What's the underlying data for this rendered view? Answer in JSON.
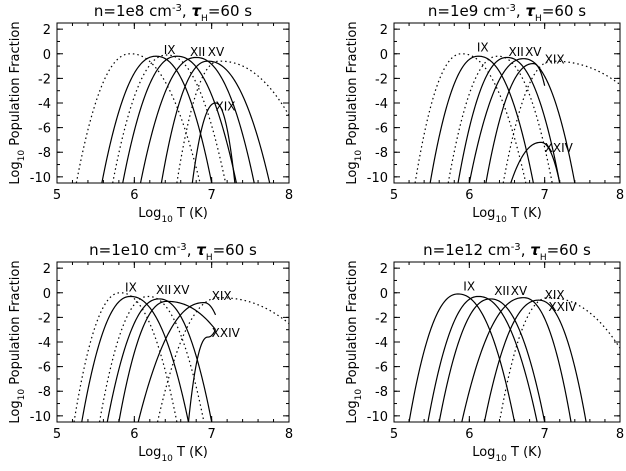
{
  "chart_data": [
    {
      "type": "line",
      "title": {
        "n": "n=1e8 cm",
        "exp": "-3",
        "sep": ", ",
        "tau": "τ",
        "tsub": "H",
        "rest": "=60 s"
      },
      "xlabel": {
        "pre": "Log",
        "sub": "10",
        "post": " T (K)"
      },
      "ylabel": {
        "pre": "Log",
        "sub": "10",
        "post": " Population Fraction"
      },
      "xlim": [
        5,
        8
      ],
      "ylim": [
        -10.5,
        2.5
      ],
      "xticks": [
        5,
        6,
        7,
        8
      ],
      "yticks": [
        -10,
        -8,
        -6,
        -4,
        -2,
        0,
        2
      ],
      "curves": [
        {
          "x": 5.25,
          "y": -10.5,
          "peak_x": 5.95,
          "peak_y": 0.0,
          "end_x": 6.85,
          "end_y": -10.5,
          "style": "dotted"
        },
        {
          "x": 5.58,
          "y": -10.5,
          "peak_x": 6.28,
          "peak_y": -0.2,
          "end_x": 7.0,
          "end_y": -10.5,
          "style": "solid"
        },
        {
          "x": 5.72,
          "y": -10.5,
          "peak_x": 6.42,
          "peak_y": -0.1,
          "end_x": 7.18,
          "end_y": -10.5,
          "style": "dotted"
        },
        {
          "x": 5.85,
          "y": -10.5,
          "peak_x": 6.55,
          "peak_y": -0.2,
          "end_x": 7.32,
          "end_y": -10.5,
          "style": "solid"
        },
        {
          "x": 6.08,
          "y": -10.5,
          "peak_x": 6.8,
          "peak_y": -0.3,
          "end_x": 7.55,
          "end_y": -10.5,
          "style": "solid"
        },
        {
          "x": 6.35,
          "y": -10.5,
          "peak_x": 6.95,
          "peak_y": -0.6,
          "end_x": 7.75,
          "end_y": -10.5,
          "style": "solid"
        },
        {
          "x": 6.55,
          "y": -10.5,
          "peak_x": 7.1,
          "peak_y": -0.6,
          "end_x": 8.0,
          "end_y": -5.0,
          "style": "dotted"
        },
        {
          "x": 6.75,
          "y": -10.5,
          "peak_x": 7.05,
          "peak_y": -4.0,
          "end_x": 7.3,
          "end_y": -10.5,
          "style": "solid"
        }
      ],
      "ion_labels": [
        {
          "text": "IX",
          "x": 6.38,
          "y": 0.0
        },
        {
          "text": "XII",
          "x": 6.72,
          "y": -0.2
        },
        {
          "text": "XV",
          "x": 6.95,
          "y": -0.2
        },
        {
          "text": "XIX",
          "x": 7.05,
          "y": -4.6
        }
      ]
    },
    {
      "type": "line",
      "title": {
        "n": "n=1e9 cm",
        "exp": "-3",
        "sep": ", ",
        "tau": "τ",
        "tsub": "H",
        "rest": "=60 s"
      },
      "xlabel": {
        "pre": "Log",
        "sub": "10",
        "post": " T (K)"
      },
      "ylabel": {
        "pre": "Log",
        "sub": "10",
        "post": " Population Fraction"
      },
      "xlim": [
        5,
        8
      ],
      "ylim": [
        -10.5,
        2.5
      ],
      "xticks": [
        5,
        6,
        7,
        8
      ],
      "yticks": [
        -10,
        -8,
        -6,
        -4,
        -2,
        0,
        2
      ],
      "curves": [
        {
          "x": 5.28,
          "y": -10.5,
          "peak_x": 5.9,
          "peak_y": 0.0,
          "end_x": 6.75,
          "end_y": -10.5,
          "style": "dotted"
        },
        {
          "x": 5.48,
          "y": -10.5,
          "peak_x": 6.12,
          "peak_y": -0.2,
          "end_x": 6.85,
          "end_y": -10.5,
          "style": "solid"
        },
        {
          "x": 5.72,
          "y": -10.5,
          "peak_x": 6.38,
          "peak_y": -0.2,
          "end_x": 7.1,
          "end_y": -10.5,
          "style": "dotted"
        },
        {
          "x": 5.85,
          "y": -10.5,
          "peak_x": 6.5,
          "peak_y": -0.3,
          "end_x": 7.2,
          "end_y": -10.5,
          "style": "solid"
        },
        {
          "x": 6.0,
          "y": -10.5,
          "peak_x": 6.72,
          "peak_y": -0.4,
          "end_x": 7.4,
          "end_y": -10.5,
          "style": "solid"
        },
        {
          "x": 6.22,
          "y": -10.5,
          "peak_x": 6.85,
          "peak_y": -0.8,
          "end_x": 7.0,
          "end_y": -2.6,
          "style": "solid"
        },
        {
          "x": 6.45,
          "y": -10.5,
          "peak_x": 7.1,
          "peak_y": -0.6,
          "end_x": 8.0,
          "end_y": -2.5,
          "style": "dotted"
        },
        {
          "x": 6.55,
          "y": -10.5,
          "peak_x": 6.95,
          "peak_y": -7.2,
          "end_x": 7.2,
          "end_y": -10.5,
          "style": "solid"
        }
      ],
      "ion_labels": [
        {
          "text": "IX",
          "x": 6.1,
          "y": 0.2
        },
        {
          "text": "XII",
          "x": 6.52,
          "y": -0.2
        },
        {
          "text": "XV",
          "x": 6.74,
          "y": -0.2
        },
        {
          "text": "XIX",
          "x": 7.0,
          "y": -0.8
        },
        {
          "text": "XXIV",
          "x": 7.0,
          "y": -8.0
        }
      ]
    },
    {
      "type": "line",
      "title": {
        "n": "n=1e10 cm",
        "exp": "-3",
        "sep": ", ",
        "tau": "τ",
        "tsub": "H",
        "rest": "=60 s"
      },
      "xlabel": {
        "pre": "Log",
        "sub": "10",
        "post": " T (K)"
      },
      "ylabel": {
        "pre": "Log",
        "sub": "10",
        "post": " Population Fraction"
      },
      "xlim": [
        5,
        8
      ],
      "ylim": [
        -10.5,
        2.5
      ],
      "xticks": [
        5,
        6,
        7,
        8
      ],
      "yticks": [
        -10,
        -8,
        -6,
        -4,
        -2,
        0,
        2
      ],
      "curves": [
        {
          "x": 5.22,
          "y": -10.5,
          "peak_x": 5.82,
          "peak_y": 0.0,
          "end_x": 6.55,
          "end_y": -10.5,
          "style": "dotted"
        },
        {
          "x": 5.32,
          "y": -10.5,
          "peak_x": 5.95,
          "peak_y": -0.3,
          "end_x": 6.7,
          "end_y": -10.5,
          "style": "solid"
        },
        {
          "x": 5.55,
          "y": -10.5,
          "peak_x": 6.18,
          "peak_y": -0.3,
          "end_x": 6.9,
          "end_y": -10.5,
          "style": "dotted"
        },
        {
          "x": 5.65,
          "y": -10.5,
          "peak_x": 6.32,
          "peak_y": -0.5,
          "end_x": 7.0,
          "end_y": -10.5,
          "style": "solid"
        },
        {
          "x": 5.8,
          "y": -10.5,
          "peak_x": 6.42,
          "peak_y": -0.7,
          "end_x": 7.05,
          "end_y": -3.0,
          "style": "solid"
        },
        {
          "x": 6.05,
          "y": -10.5,
          "peak_x": 6.9,
          "peak_y": -0.8,
          "end_x": 7.05,
          "end_y": -1.8,
          "style": "solid"
        },
        {
          "x": 6.3,
          "y": -10.5,
          "peak_x": 7.1,
          "peak_y": -0.4,
          "end_x": 8.0,
          "end_y": -2.5,
          "style": "dotted"
        },
        {
          "x": 6.7,
          "y": -10.5,
          "peak_x": 6.95,
          "peak_y": -3.6,
          "end_x": 7.05,
          "end_y": -3.0,
          "style": "solid"
        }
      ],
      "ion_labels": [
        {
          "text": "IX",
          "x": 5.88,
          "y": 0.1
        },
        {
          "text": "XII",
          "x": 6.28,
          "y": -0.1
        },
        {
          "text": "XV",
          "x": 6.5,
          "y": -0.1
        },
        {
          "text": "XIX",
          "x": 7.0,
          "y": -0.6
        },
        {
          "text": "XXIV",
          "x": 7.0,
          "y": -3.6
        }
      ]
    },
    {
      "type": "line",
      "title": {
        "n": "n=1e12 cm",
        "exp": "-3",
        "sep": ", ",
        "tau": "τ",
        "tsub": "H",
        "rest": "=60 s"
      },
      "xlabel": {
        "pre": "Log",
        "sub": "10",
        "post": " T (K)"
      },
      "ylabel": {
        "pre": "Log",
        "sub": "10",
        "post": " Population Fraction"
      },
      "xlim": [
        5,
        8
      ],
      "ylim": [
        -10.5,
        2.5
      ],
      "xticks": [
        5,
        6,
        7,
        8
      ],
      "yticks": [
        -10,
        -8,
        -6,
        -4,
        -2,
        0,
        2
      ],
      "curves": [
        {
          "x": 5.2,
          "y": -10.5,
          "peak_x": 5.85,
          "peak_y": -0.1,
          "end_x": 6.6,
          "end_y": -10.5,
          "style": "solid"
        },
        {
          "x": 5.45,
          "y": -10.5,
          "peak_x": 6.12,
          "peak_y": -0.3,
          "end_x": 6.9,
          "end_y": -10.5,
          "style": "solid"
        },
        {
          "x": 5.6,
          "y": -10.5,
          "peak_x": 6.28,
          "peak_y": -0.5,
          "end_x": 7.0,
          "end_y": -10.5,
          "style": "solid"
        },
        {
          "x": 5.9,
          "y": -10.5,
          "peak_x": 6.72,
          "peak_y": -0.4,
          "end_x": 7.35,
          "end_y": -10.5,
          "style": "solid"
        },
        {
          "x": 6.2,
          "y": -10.5,
          "peak_x": 6.92,
          "peak_y": -0.6,
          "end_x": 7.55,
          "end_y": -10.5,
          "style": "solid"
        },
        {
          "x": 6.4,
          "y": -10.5,
          "peak_x": 7.05,
          "peak_y": -0.4,
          "end_x": 8.0,
          "end_y": -4.5,
          "style": "dotted"
        }
      ],
      "ion_labels": [
        {
          "text": "IX",
          "x": 5.92,
          "y": 0.2
        },
        {
          "text": "XII",
          "x": 6.33,
          "y": -0.2
        },
        {
          "text": "XV",
          "x": 6.55,
          "y": -0.2
        },
        {
          "text": "XIX",
          "x": 7.0,
          "y": -0.5
        },
        {
          "text": "XXIV",
          "x": 7.05,
          "y": -1.5
        }
      ]
    }
  ]
}
